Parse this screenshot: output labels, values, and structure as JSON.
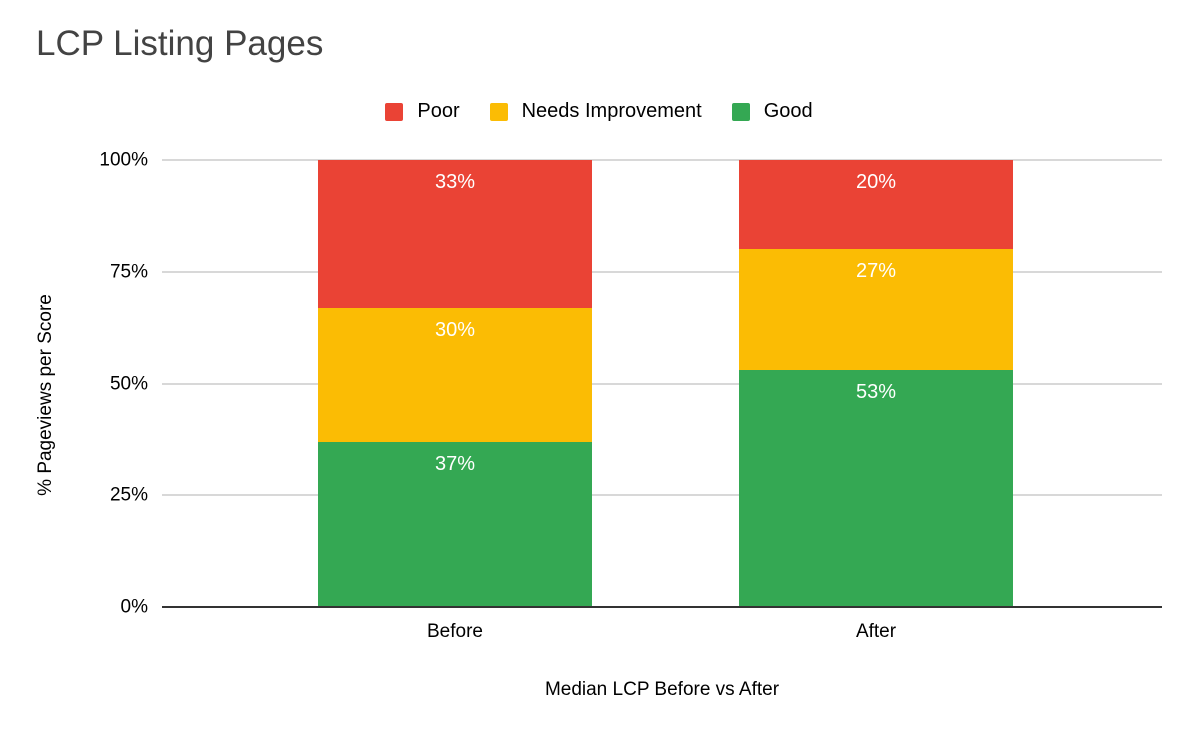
{
  "title": "LCP Listing Pages",
  "colors": {
    "poor": "#EA4335",
    "needs_improvement": "#FBBC04",
    "good": "#34A853",
    "gridline": "#D8D8D8",
    "axis_line": "#333333",
    "title_text": "#434343",
    "bar_label_text": "#FFFFFF",
    "axis_text": "#000000"
  },
  "chart_data": {
    "type": "bar",
    "stacked": true,
    "title": "LCP Listing Pages",
    "xlabel": "Median LCP Before vs After",
    "ylabel": "% Pageviews per Score",
    "categories": [
      "Before",
      "After"
    ],
    "series": [
      {
        "name": "Poor",
        "color": "#EA4335",
        "values": [
          33,
          20
        ]
      },
      {
        "name": "Needs Improvement",
        "color": "#FBBC04",
        "values": [
          30,
          27
        ]
      },
      {
        "name": "Good",
        "color": "#34A853",
        "values": [
          37,
          53
        ]
      }
    ],
    "value_suffix": "%",
    "ylim": [
      0,
      100
    ],
    "yticks": [
      "0%",
      "25%",
      "50%",
      "75%",
      "100%"
    ],
    "grid": true,
    "legend_position": "top",
    "legend_order": [
      "Poor",
      "Needs Improvement",
      "Good"
    ]
  }
}
